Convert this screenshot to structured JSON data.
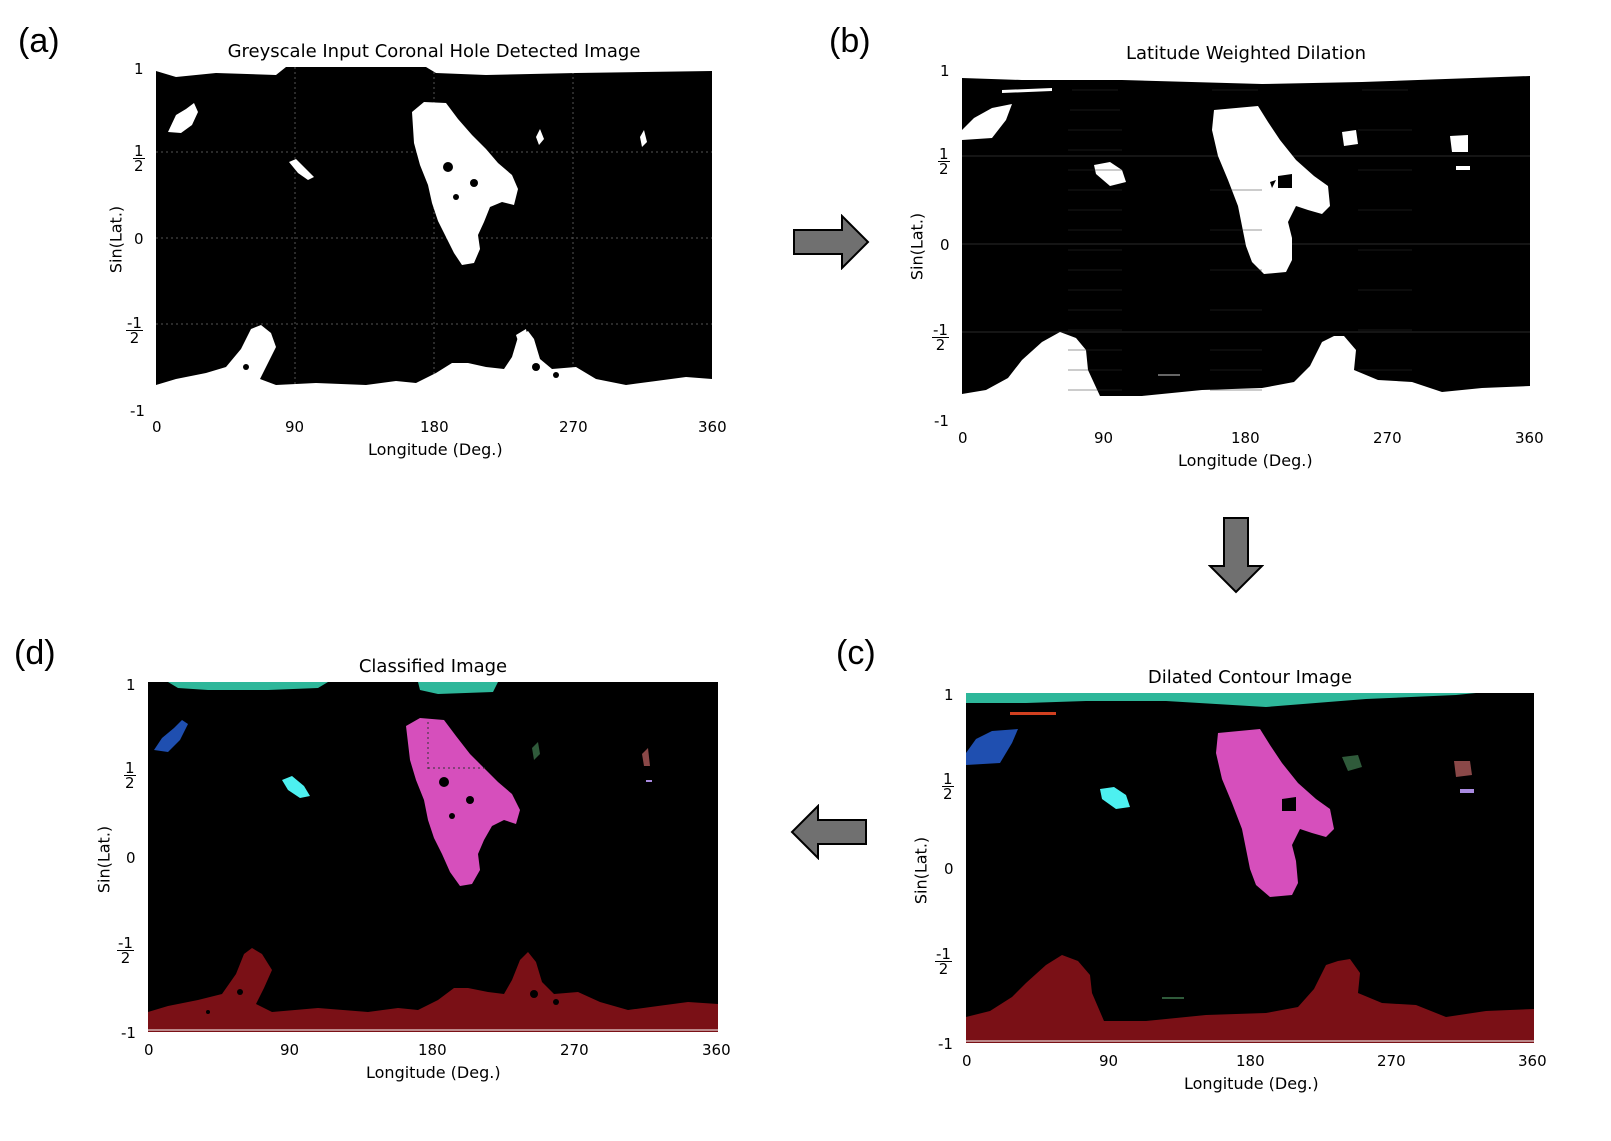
{
  "panels": {
    "a": {
      "letter": "(a)",
      "title": "Greyscale Input Coronal Hole Detected Image"
    },
    "b": {
      "letter": "(b)",
      "title": "Latitude Weighted Dilation"
    },
    "c": {
      "letter": "(c)",
      "title": "Dilated Contour Image"
    },
    "d": {
      "letter": "(d)",
      "title": "Classified Image"
    }
  },
  "axes": {
    "xlabel": "Longitude (Deg.)",
    "ylabel": "Sin(Lat.)",
    "xticks": [
      "0",
      "90",
      "180",
      "270",
      "360"
    ],
    "yticks": {
      "top": "1",
      "half_num": "1",
      "half_den": "2",
      "zero": "0",
      "neg_half_sign": "-",
      "neg_half_num": "1",
      "neg_half_den": "2",
      "bottom": "-1"
    }
  },
  "colors": {
    "background": "#000000",
    "ch_white": "#ffffff",
    "magenta": "#d64fbc",
    "dark_red": "#7a1016",
    "teal": "#2eb79a",
    "blue": "#1f4fb0",
    "cyan": "#4df0f0",
    "dark_green": "#2f5a3a",
    "brown_red": "#8a4848",
    "lavender": "#a98ae0",
    "orange_red": "#d04020",
    "arrow_fill": "#707070"
  }
}
